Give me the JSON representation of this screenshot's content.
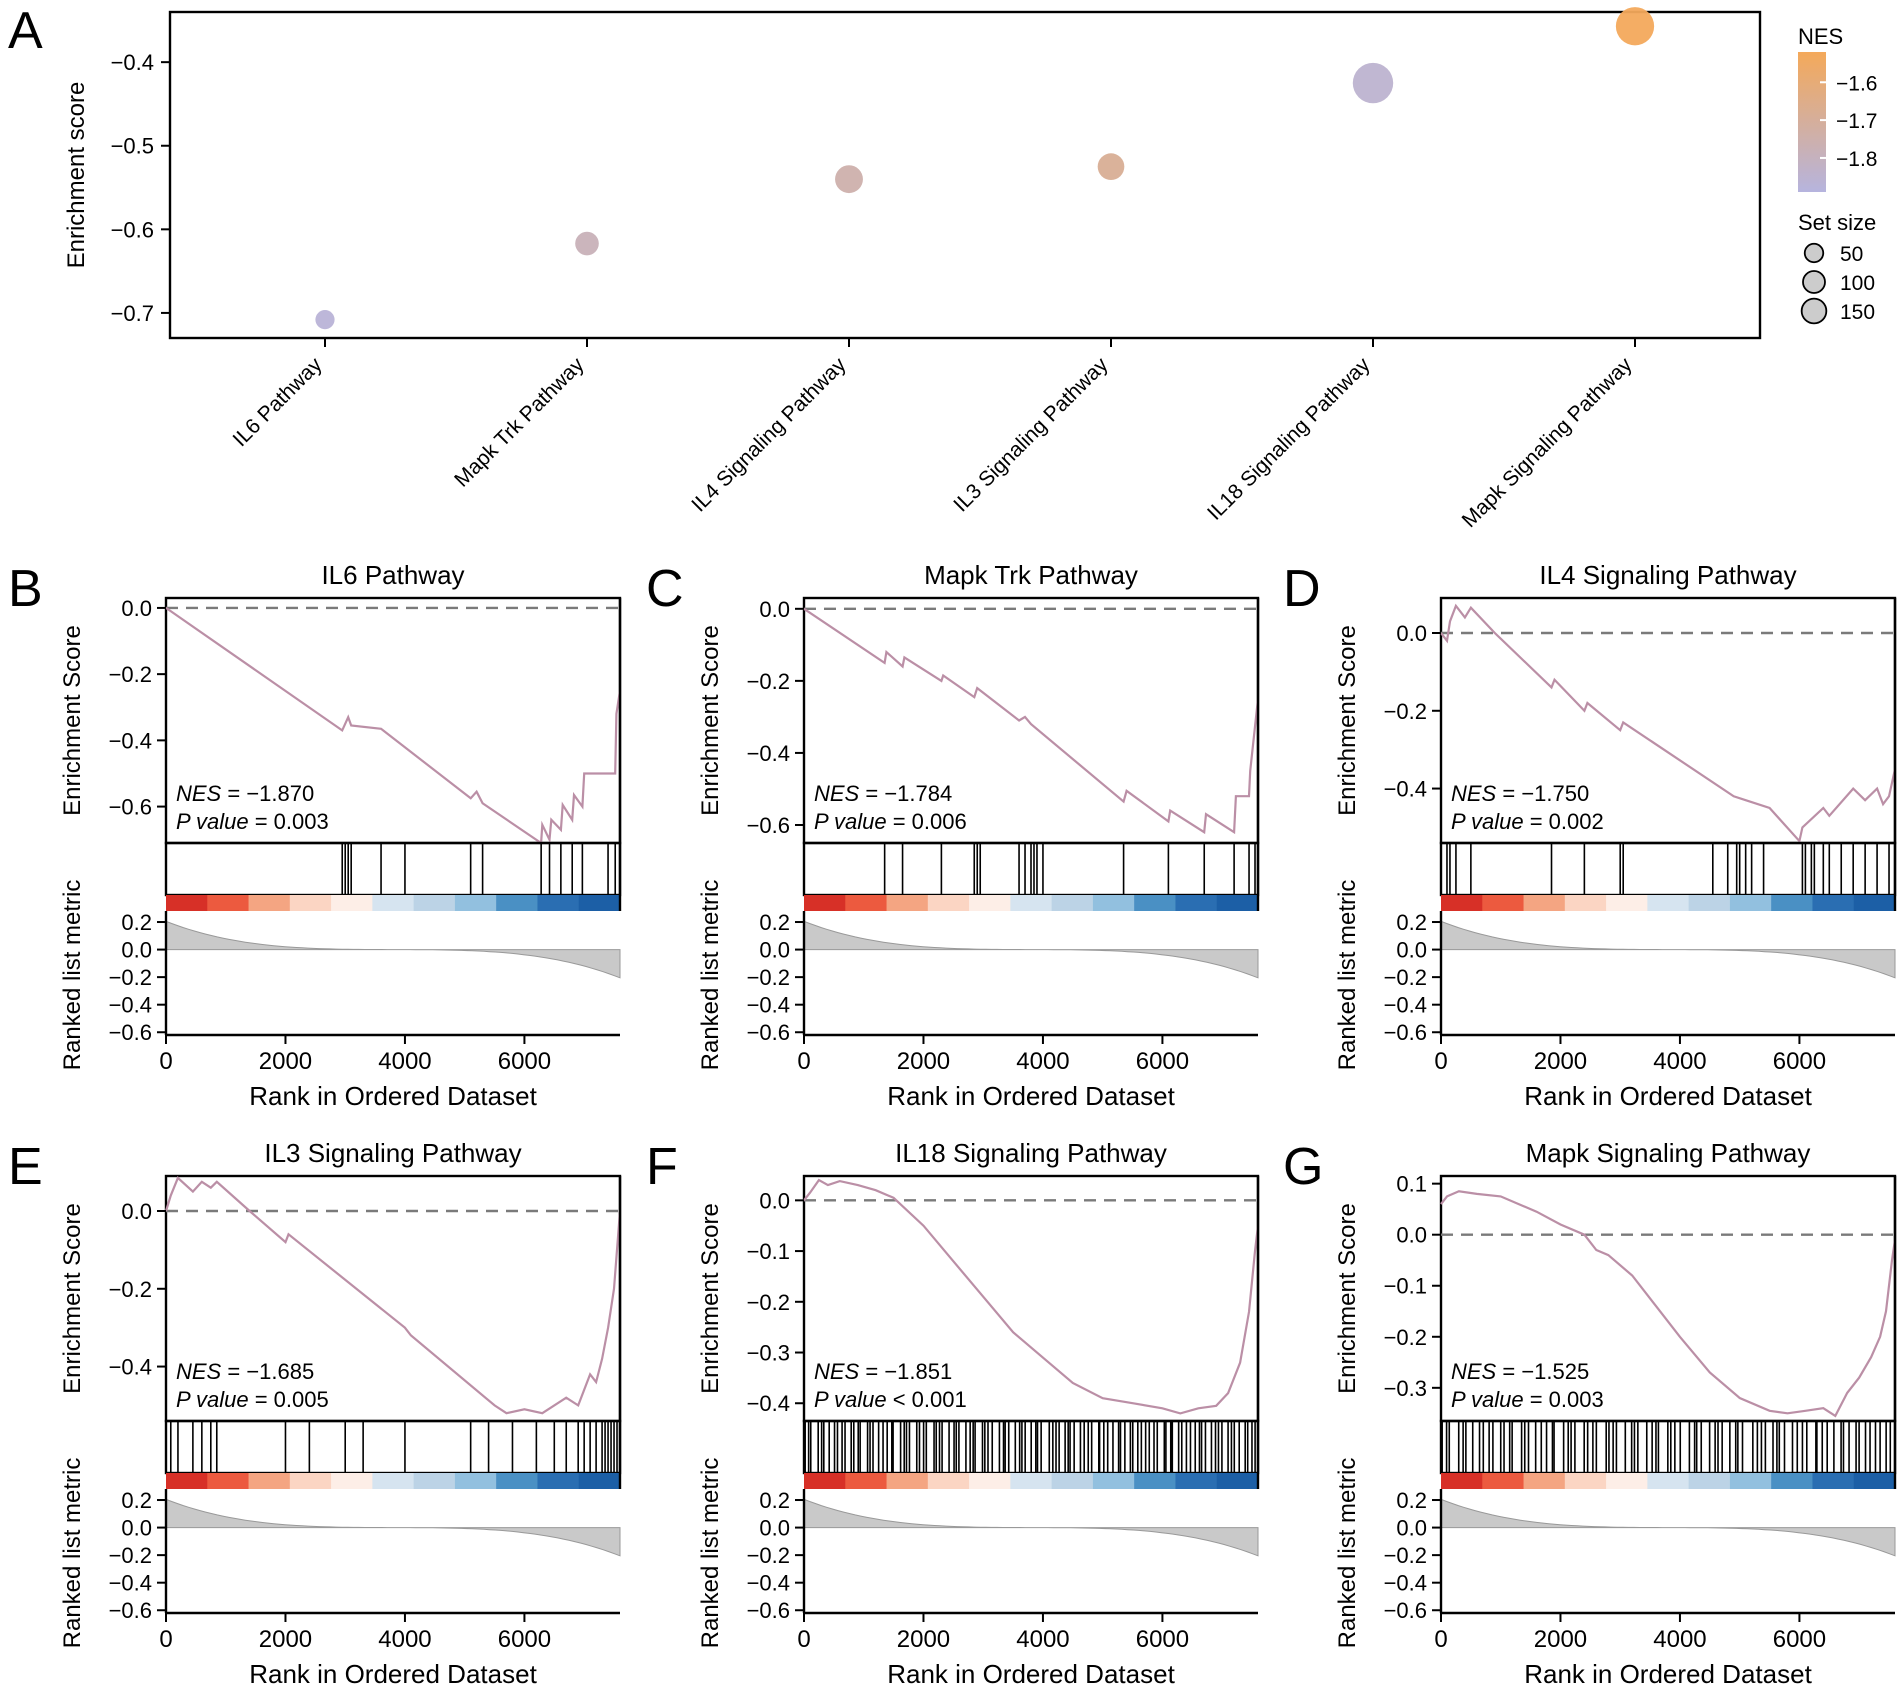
{
  "chart_data": [
    {
      "id": "A",
      "panel_letter": "A",
      "type": "scatter",
      "title": "",
      "xlabel": "",
      "ylabel": "Enrichment score",
      "ylim": [
        -0.73,
        -0.34
      ],
      "yticks": [
        -0.4,
        -0.5,
        -0.6,
        -0.7
      ],
      "ytick_labels": [
        "−0.4",
        "−0.5",
        "−0.6",
        "−0.7"
      ],
      "categories": [
        "IL6 Pathway",
        "Mapk Trk Pathway",
        "IL4 Signaling Pathway",
        "IL3 Signaling Pathway",
        "IL18 Signaling Pathway",
        "Mapk Signaling Pathway"
      ],
      "enrichment_score": [
        -0.708,
        -0.617,
        -0.54,
        -0.525,
        -0.425,
        -0.357
      ],
      "nes": [
        -1.87,
        -1.784,
        -1.75,
        -1.685,
        -1.851,
        -1.525
      ],
      "set_size": [
        10,
        22,
        38,
        33,
        110,
        95
      ],
      "colorbar": {
        "title": "NES",
        "range": [
          -1.89,
          -1.52
        ],
        "ticks": [
          -1.6,
          -1.7,
          -1.8
        ],
        "tick_labels": [
          "−1.6",
          "−1.7",
          "−1.8"
        ],
        "color_high": "#f4a95a",
        "color_low": "#b6b4de"
      },
      "size_legend": {
        "title": "Set size",
        "values": [
          50,
          100,
          150
        ],
        "labels": [
          "50",
          "100",
          "150"
        ]
      }
    },
    {
      "id": "B",
      "panel_letter": "B",
      "type": "line",
      "title": "IL6 Pathway",
      "xlabel": "Rank in Ordered Dataset",
      "ylabel_top": "Enrichment Score",
      "ylabel_bottom": "Ranked list metric",
      "x_range": [
        0,
        7600
      ],
      "xticks": [
        0,
        2000,
        4000,
        6000
      ],
      "xtick_labels": [
        "0",
        "2000",
        "4000",
        "6000"
      ],
      "es_range": [
        -0.71,
        0.03
      ],
      "es_ticks": [
        0.0,
        -0.2,
        -0.4,
        -0.6
      ],
      "es_tick_labels": [
        "0.0",
        "−0.2",
        "−0.4",
        "−0.6"
      ],
      "es_curve": [
        [
          0,
          0.0
        ],
        [
          2950,
          -0.37
        ],
        [
          3050,
          -0.33
        ],
        [
          3100,
          -0.355
        ],
        [
          3600,
          -0.365
        ],
        [
          5100,
          -0.575
        ],
        [
          5200,
          -0.555
        ],
        [
          5300,
          -0.59
        ],
        [
          6280,
          -0.71
        ],
        [
          6300,
          -0.655
        ],
        [
          6420,
          -0.7
        ],
        [
          6450,
          -0.64
        ],
        [
          6610,
          -0.67
        ],
        [
          6640,
          -0.595
        ],
        [
          6800,
          -0.64
        ],
        [
          6830,
          -0.565
        ],
        [
          6970,
          -0.6
        ],
        [
          7000,
          -0.5
        ],
        [
          7520,
          -0.5
        ],
        [
          7540,
          -0.32
        ],
        [
          7600,
          -0.25
        ]
      ],
      "hits": [
        2950,
        3000,
        3050,
        3100,
        3600,
        4000,
        5100,
        5300,
        6280,
        6420,
        6610,
        6800,
        6970,
        7400,
        7520
      ],
      "metric_ticks": [
        0.2,
        0.0,
        -0.2,
        -0.4,
        -0.6
      ],
      "metric_tick_labels": [
        "0.2",
        "0.0",
        "−0.2",
        "−0.4",
        "−0.6"
      ],
      "metric_range": [
        -0.62,
        0.28
      ],
      "nes_label": "NES",
      "nes_text": " = −1.870",
      "pvalue_label": "P value",
      "pvalue_text": " = 0.003"
    },
    {
      "id": "C",
      "panel_letter": "C",
      "type": "line",
      "title": "Mapk Trk Pathway",
      "xlabel": "Rank in Ordered Dataset",
      "ylabel_top": "Enrichment Score",
      "ylabel_bottom": "Ranked list metric",
      "x_range": [
        0,
        7600
      ],
      "xticks": [
        0,
        2000,
        4000,
        6000
      ],
      "xtick_labels": [
        "0",
        "2000",
        "4000",
        "6000"
      ],
      "es_range": [
        -0.65,
        0.03
      ],
      "es_ticks": [
        0.0,
        -0.2,
        -0.4,
        -0.6
      ],
      "es_tick_labels": [
        "0.0",
        "−0.2",
        "−0.4",
        "−0.6"
      ],
      "es_curve": [
        [
          0,
          0.0
        ],
        [
          1350,
          -0.15
        ],
        [
          1380,
          -0.12
        ],
        [
          1650,
          -0.16
        ],
        [
          1680,
          -0.135
        ],
        [
          2300,
          -0.2
        ],
        [
          2330,
          -0.185
        ],
        [
          2850,
          -0.245
        ],
        [
          2900,
          -0.22
        ],
        [
          3600,
          -0.31
        ],
        [
          3700,
          -0.3
        ],
        [
          3800,
          -0.32
        ],
        [
          5350,
          -0.535
        ],
        [
          5400,
          -0.505
        ],
        [
          6100,
          -0.59
        ],
        [
          6130,
          -0.56
        ],
        [
          6700,
          -0.62
        ],
        [
          6730,
          -0.57
        ],
        [
          7200,
          -0.62
        ],
        [
          7230,
          -0.52
        ],
        [
          7450,
          -0.52
        ],
        [
          7470,
          -0.45
        ],
        [
          7600,
          -0.25
        ]
      ],
      "hits": [
        1350,
        1650,
        2300,
        2850,
        2900,
        2950,
        3600,
        3700,
        3800,
        3850,
        3900,
        4000,
        5350,
        6100,
        6700,
        7200,
        7450,
        7550
      ],
      "metric_ticks": [
        0.2,
        0.0,
        -0.2,
        -0.4,
        -0.6
      ],
      "metric_tick_labels": [
        "0.2",
        "0.0",
        "−0.2",
        "−0.4",
        "−0.6"
      ],
      "metric_range": [
        -0.62,
        0.28
      ],
      "nes_label": "NES",
      "nes_text": " = −1.784",
      "pvalue_label": "P value",
      "pvalue_text": " = 0.006"
    },
    {
      "id": "D",
      "panel_letter": "D",
      "type": "line",
      "title": "IL4 Signaling Pathway",
      "xlabel": "Rank in Ordered Dataset",
      "ylabel_top": "Enrichment Score",
      "ylabel_bottom": "Ranked list metric",
      "x_range": [
        0,
        7600
      ],
      "xticks": [
        0,
        2000,
        4000,
        6000
      ],
      "xtick_labels": [
        "0",
        "2000",
        "4000",
        "6000"
      ],
      "es_range": [
        -0.54,
        0.09
      ],
      "es_ticks": [
        0.0,
        -0.2,
        -0.4
      ],
      "es_tick_labels": [
        "0.0",
        "−0.2",
        "−0.4"
      ],
      "es_curve": [
        [
          0,
          0.0
        ],
        [
          100,
          -0.02
        ],
        [
          150,
          0.03
        ],
        [
          250,
          0.07
        ],
        [
          400,
          0.04
        ],
        [
          500,
          0.065
        ],
        [
          900,
          0.0
        ],
        [
          1850,
          -0.14
        ],
        [
          1900,
          -0.12
        ],
        [
          2400,
          -0.2
        ],
        [
          2450,
          -0.18
        ],
        [
          3000,
          -0.25
        ],
        [
          3050,
          -0.23
        ],
        [
          4900,
          -0.42
        ],
        [
          5100,
          -0.43
        ],
        [
          5500,
          -0.45
        ],
        [
          6000,
          -0.535
        ],
        [
          6050,
          -0.5
        ],
        [
          6400,
          -0.45
        ],
        [
          6500,
          -0.47
        ],
        [
          6900,
          -0.4
        ],
        [
          7100,
          -0.43
        ],
        [
          7300,
          -0.4
        ],
        [
          7400,
          -0.44
        ],
        [
          7500,
          -0.42
        ],
        [
          7600,
          -0.35
        ]
      ],
      "hits": [
        100,
        150,
        250,
        500,
        1850,
        2400,
        3000,
        3050,
        4550,
        4800,
        4950,
        5000,
        5100,
        5200,
        5400,
        6050,
        6100,
        6200,
        6250,
        6400,
        6500,
        6700,
        6900,
        7100,
        7300,
        7500
      ],
      "metric_ticks": [
        0.2,
        0.0,
        -0.2,
        -0.4,
        -0.6
      ],
      "metric_tick_labels": [
        "0.2",
        "0.0",
        "−0.2",
        "−0.4",
        "−0.6"
      ],
      "metric_range": [
        -0.62,
        0.28
      ],
      "nes_label": "NES",
      "nes_text": " = −1.750",
      "pvalue_label": "P value",
      "pvalue_text": " = 0.002"
    },
    {
      "id": "E",
      "panel_letter": "E",
      "type": "line",
      "title": "IL3 Signaling Pathway",
      "xlabel": "Rank in Ordered Dataset",
      "ylabel_top": "Enrichment Score",
      "ylabel_bottom": "Ranked list metric",
      "x_range": [
        0,
        7600
      ],
      "xticks": [
        0,
        2000,
        4000,
        6000
      ],
      "xtick_labels": [
        "0",
        "2000",
        "4000",
        "6000"
      ],
      "es_range": [
        -0.54,
        0.09
      ],
      "es_ticks": [
        0.0,
        -0.2,
        -0.4
      ],
      "es_tick_labels": [
        "0.0",
        "−0.2",
        "−0.4"
      ],
      "es_curve": [
        [
          0,
          0.0
        ],
        [
          80,
          0.04
        ],
        [
          200,
          0.085
        ],
        [
          450,
          0.05
        ],
        [
          600,
          0.075
        ],
        [
          750,
          0.06
        ],
        [
          850,
          0.075
        ],
        [
          1400,
          0.0
        ],
        [
          2000,
          -0.08
        ],
        [
          2050,
          -0.06
        ],
        [
          4000,
          -0.3
        ],
        [
          4100,
          -0.32
        ],
        [
          5500,
          -0.5
        ],
        [
          5700,
          -0.52
        ],
        [
          6000,
          -0.51
        ],
        [
          6300,
          -0.52
        ],
        [
          6700,
          -0.48
        ],
        [
          6900,
          -0.5
        ],
        [
          7100,
          -0.42
        ],
        [
          7200,
          -0.44
        ],
        [
          7300,
          -0.38
        ],
        [
          7400,
          -0.3
        ],
        [
          7500,
          -0.2
        ],
        [
          7600,
          0.0
        ]
      ],
      "hits": [
        80,
        200,
        450,
        600,
        750,
        850,
        2000,
        2400,
        3000,
        3300,
        4000,
        5100,
        5400,
        5800,
        6200,
        6500,
        6700,
        6900,
        7000,
        7100,
        7200,
        7300,
        7350,
        7400,
        7450,
        7500,
        7550
      ],
      "metric_ticks": [
        0.2,
        0.0,
        -0.2,
        -0.4,
        -0.6
      ],
      "metric_tick_labels": [
        "0.2",
        "0.0",
        "−0.2",
        "−0.4",
        "−0.6"
      ],
      "metric_range": [
        -0.62,
        0.28
      ],
      "nes_label": "NES",
      "nes_text": " = −1.685",
      "pvalue_label": "P value",
      "pvalue_text": " = 0.005"
    },
    {
      "id": "F",
      "panel_letter": "F",
      "type": "line",
      "title": "IL18 Signaling Pathway",
      "xlabel": "Rank in Ordered Dataset",
      "ylabel_top": "Enrichment Score",
      "ylabel_bottom": "Ranked list metric",
      "x_range": [
        0,
        7600
      ],
      "xticks": [
        0,
        2000,
        4000,
        6000
      ],
      "xtick_labels": [
        "0",
        "2000",
        "4000",
        "6000"
      ],
      "es_range": [
        -0.435,
        0.048
      ],
      "es_ticks": [
        0.0,
        -0.1,
        -0.2,
        -0.3,
        -0.4
      ],
      "es_tick_labels": [
        "0.0",
        "−0.1",
        "−0.2",
        "−0.3",
        "−0.4"
      ],
      "es_curve": [
        [
          0,
          0.0
        ],
        [
          100,
          0.015
        ],
        [
          250,
          0.04
        ],
        [
          400,
          0.03
        ],
        [
          600,
          0.038
        ],
        [
          900,
          0.03
        ],
        [
          1200,
          0.02
        ],
        [
          1500,
          0.005
        ],
        [
          2000,
          -0.05
        ],
        [
          2500,
          -0.12
        ],
        [
          3000,
          -0.19
        ],
        [
          3500,
          -0.26
        ],
        [
          4000,
          -0.31
        ],
        [
          4500,
          -0.36
        ],
        [
          5000,
          -0.39
        ],
        [
          5500,
          -0.4
        ],
        [
          6000,
          -0.41
        ],
        [
          6300,
          -0.42
        ],
        [
          6600,
          -0.41
        ],
        [
          6900,
          -0.405
        ],
        [
          7100,
          -0.38
        ],
        [
          7300,
          -0.32
        ],
        [
          7450,
          -0.22
        ],
        [
          7550,
          -0.1
        ],
        [
          7600,
          -0.05
        ]
      ],
      "hits": [],
      "dense_hit_step": 55,
      "metric_ticks": [
        0.2,
        0.0,
        -0.2,
        -0.4,
        -0.6
      ],
      "metric_tick_labels": [
        "0.2",
        "0.0",
        "−0.2",
        "−0.4",
        "−0.6"
      ],
      "metric_range": [
        -0.62,
        0.28
      ],
      "nes_label": "NES",
      "nes_text": " = −1.851",
      "pvalue_label": "P value",
      "pvalue_text": " < 0.001"
    },
    {
      "id": "G",
      "panel_letter": "G",
      "type": "line",
      "title": "Mapk Signaling Pathway",
      "xlabel": "Rank in Ordered Dataset",
      "ylabel_top": "Enrichment Score",
      "ylabel_bottom": "Ranked list metric",
      "x_range": [
        0,
        7600
      ],
      "xticks": [
        0,
        2000,
        4000,
        6000
      ],
      "xtick_labels": [
        "0",
        "2000",
        "4000",
        "6000"
      ],
      "es_range": [
        -0.365,
        0.115
      ],
      "es_ticks": [
        0.1,
        0.0,
        -0.1,
        -0.2,
        -0.3
      ],
      "es_tick_labels": [
        "0.1",
        "0.0",
        "−0.1",
        "−0.2",
        "−0.3"
      ],
      "es_curve": [
        [
          0,
          0.06
        ],
        [
          100,
          0.075
        ],
        [
          300,
          0.085
        ],
        [
          600,
          0.08
        ],
        [
          1000,
          0.075
        ],
        [
          1300,
          0.06
        ],
        [
          1600,
          0.045
        ],
        [
          2000,
          0.02
        ],
        [
          2400,
          0.0
        ],
        [
          2600,
          -0.03
        ],
        [
          2800,
          -0.04
        ],
        [
          3200,
          -0.08
        ],
        [
          3600,
          -0.14
        ],
        [
          4000,
          -0.2
        ],
        [
          4500,
          -0.27
        ],
        [
          5000,
          -0.32
        ],
        [
          5500,
          -0.345
        ],
        [
          5800,
          -0.35
        ],
        [
          6100,
          -0.345
        ],
        [
          6400,
          -0.34
        ],
        [
          6600,
          -0.355
        ],
        [
          6800,
          -0.31
        ],
        [
          7000,
          -0.28
        ],
        [
          7200,
          -0.24
        ],
        [
          7350,
          -0.2
        ],
        [
          7450,
          -0.15
        ],
        [
          7550,
          -0.05
        ],
        [
          7600,
          -0.01
        ]
      ],
      "hits": [],
      "dense_hit_step": 70,
      "metric_ticks": [
        0.2,
        0.0,
        -0.2,
        -0.4,
        -0.6
      ],
      "metric_tick_labels": [
        "0.2",
        "0.0",
        "−0.2",
        "−0.4",
        "−0.6"
      ],
      "metric_range": [
        -0.62,
        0.28
      ],
      "nes_label": "NES",
      "nes_text": " = −1.525",
      "pvalue_label": "P value",
      "pvalue_text": " = 0.003"
    }
  ]
}
